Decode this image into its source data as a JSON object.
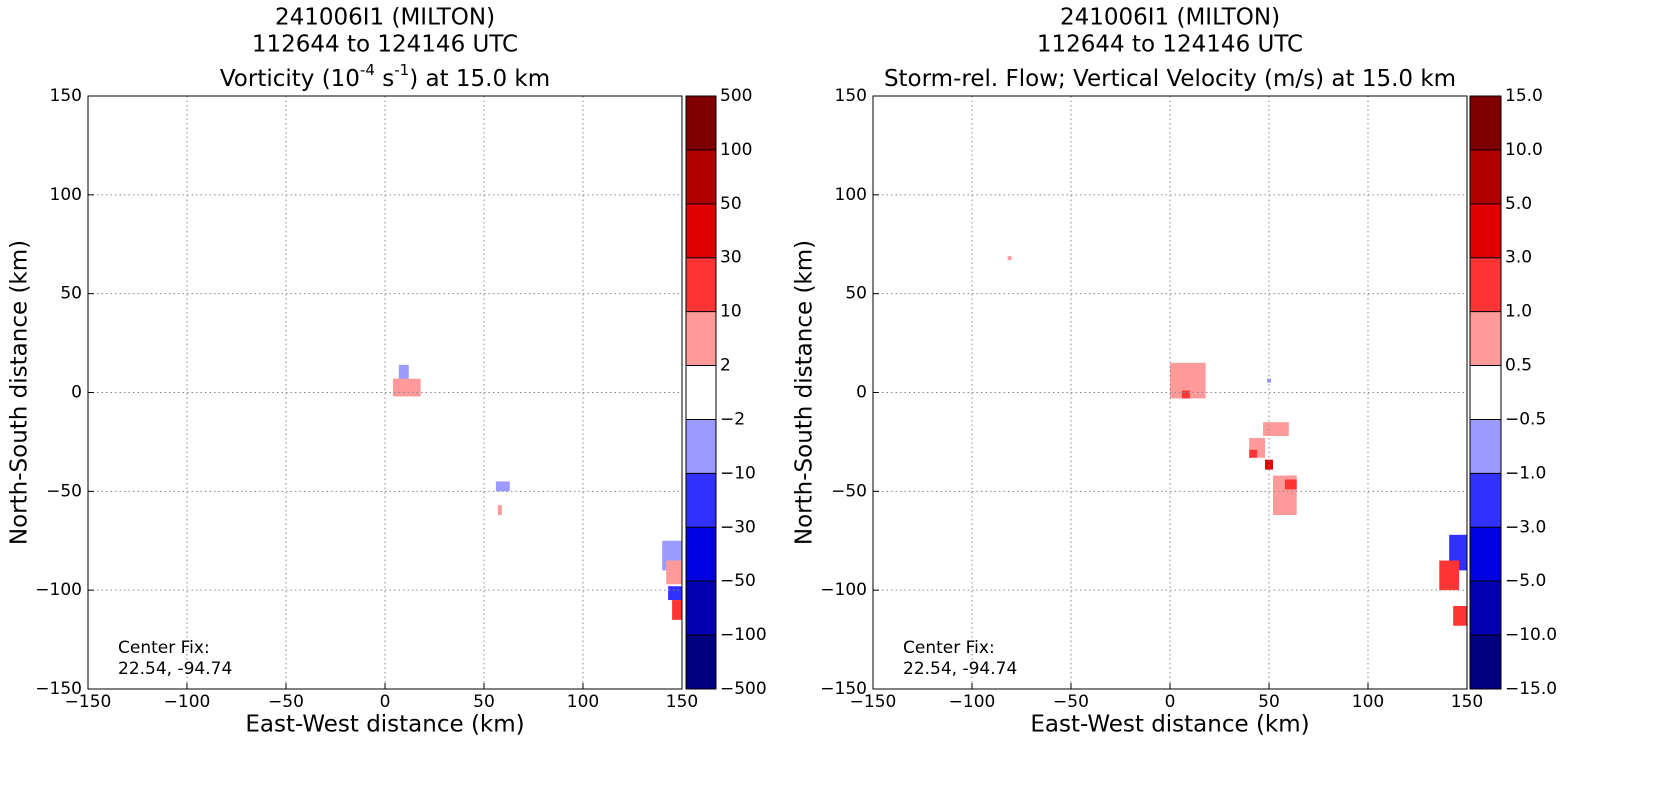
{
  "chart_data": [
    {
      "type": "contour",
      "title": [
        "241006I1 (MILTON)",
        "112644 to 124146 UTC",
        [
          "Vorticity (10",
          "-4",
          " s",
          "-1",
          ") at 15.0 km"
        ]
      ],
      "xlabel": "East-West distance (km)",
      "ylabel": "North-South distance (km)",
      "annotation": [
        "Center Fix:",
        "22.54, -94.74"
      ],
      "xlim": [
        -150,
        150
      ],
      "ylim": [
        -150,
        150
      ],
      "xticks": [
        {
          "value": -150,
          "label": "−150"
        },
        {
          "value": -100,
          "label": "−100"
        },
        {
          "value": -50,
          "label": "−50"
        },
        0,
        50,
        100,
        150
      ],
      "yticks": [
        {
          "value": -150,
          "label": "−150"
        },
        {
          "value": -100,
          "label": "−100"
        },
        {
          "value": -50,
          "label": "−50"
        },
        0,
        50,
        100,
        150
      ],
      "grid": true,
      "levels": [
        {
          "value": -500,
          "label": "−500"
        },
        {
          "value": -100,
          "label": "−100"
        },
        {
          "value": -50,
          "label": "−50"
        },
        {
          "value": -30,
          "label": "−30"
        },
        {
          "value": -10,
          "label": "−10"
        },
        {
          "value": -2,
          "label": "−2"
        },
        2,
        10,
        30,
        50,
        100,
        500
      ],
      "colors": [
        "#00007f",
        "#0000b0",
        "#0000e0",
        "#3030ff",
        "#9a9aff",
        "#ffffff",
        "#ff9a9a",
        "#ff3535",
        "#e00000",
        "#b00000",
        "#7f0000"
      ],
      "regions": [
        {
          "x0": 7,
          "x1": 12,
          "y0": 6,
          "y1": 14,
          "value": -5
        },
        {
          "x0": 4,
          "x1": 18,
          "y0": -2,
          "y1": 7,
          "value": 5
        },
        {
          "x0": 56,
          "x1": 63,
          "y0": -50,
          "y1": -45,
          "value": -5
        },
        {
          "x0": 57,
          "x1": 59,
          "y0": -62,
          "y1": -57,
          "value": 5
        },
        {
          "x0": 140,
          "x1": 150,
          "y0": -90,
          "y1": -75,
          "value": -5
        },
        {
          "x0": 142,
          "x1": 150,
          "y0": -97,
          "y1": -85,
          "value": 5
        },
        {
          "x0": 143,
          "x1": 150,
          "y0": -105,
          "y1": -98,
          "value": -20
        },
        {
          "x0": 145,
          "x1": 150,
          "y0": -115,
          "y1": -105,
          "value": 20
        }
      ]
    },
    {
      "type": "contour",
      "title": [
        "241006I1 (MILTON)",
        "112644 to 124146 UTC",
        [
          "Storm-rel. Flow; Vertical Velocity (m/s) at 15.0 km"
        ]
      ],
      "xlabel": "East-West distance (km)",
      "ylabel": "North-South distance (km)",
      "annotation": [
        "Center Fix:",
        "22.54, -94.74"
      ],
      "xlim": [
        -150,
        150
      ],
      "ylim": [
        -150,
        150
      ],
      "xticks": [
        {
          "value": -150,
          "label": "−150"
        },
        {
          "value": -100,
          "label": "−100"
        },
        {
          "value": -50,
          "label": "−50"
        },
        0,
        50,
        100,
        150
      ],
      "yticks": [
        {
          "value": -150,
          "label": "−150"
        },
        {
          "value": -100,
          "label": "−100"
        },
        {
          "value": -50,
          "label": "−50"
        },
        0,
        50,
        100,
        150
      ],
      "grid": true,
      "levels": [
        {
          "value": -15,
          "label": "−15.0"
        },
        {
          "value": -10,
          "label": "−10.0"
        },
        {
          "value": -5,
          "label": "−5.0"
        },
        {
          "value": -3,
          "label": "−3.0"
        },
        {
          "value": -1,
          "label": "−1.0"
        },
        {
          "value": -0.5,
          "label": "−0.5"
        },
        0.5,
        {
          "value": 1,
          "label": "1.0"
        },
        {
          "value": 3,
          "label": "3.0"
        },
        {
          "value": 5,
          "label": "5.0"
        },
        {
          "value": 10,
          "label": "10.0"
        },
        {
          "value": 15,
          "label": "15.0"
        }
      ],
      "colors": [
        "#00007f",
        "#0000b0",
        "#0000e0",
        "#3030ff",
        "#9a9aff",
        "#ffffff",
        "#ff9a9a",
        "#ff3535",
        "#e00000",
        "#b00000",
        "#7f0000"
      ],
      "regions": [
        {
          "x0": -82,
          "x1": -80,
          "y0": 67,
          "y1": 69,
          "value": 0.7
        },
        {
          "x0": 0,
          "x1": 18,
          "y0": -3,
          "y1": 15,
          "value": 0.7
        },
        {
          "x0": 6,
          "x1": 10,
          "y0": -3,
          "y1": 1,
          "value": 2
        },
        {
          "x0": 40,
          "x1": 48,
          "y0": -33,
          "y1": -23,
          "value": 0.7
        },
        {
          "x0": 40,
          "x1": 44,
          "y0": -33,
          "y1": -29,
          "value": 2
        },
        {
          "x0": 48,
          "x1": 52,
          "y0": -39,
          "y1": -34,
          "value": 4
        },
        {
          "x0": 52,
          "x1": 64,
          "y0": -62,
          "y1": -42,
          "value": 0.7
        },
        {
          "x0": 58,
          "x1": 64,
          "y0": -49,
          "y1": -44,
          "value": 2
        },
        {
          "x0": 47,
          "x1": 60,
          "y0": -22,
          "y1": -15,
          "value": 0.7
        },
        {
          "x0": 49,
          "x1": 51,
          "y0": 5,
          "y1": 7,
          "value": -0.7
        },
        {
          "x0": 141,
          "x1": 150,
          "y0": -90,
          "y1": -72,
          "value": -2
        },
        {
          "x0": 136,
          "x1": 146,
          "y0": -100,
          "y1": -85,
          "value": 2
        },
        {
          "x0": 143,
          "x1": 150,
          "y0": -118,
          "y1": -108,
          "value": 2
        }
      ]
    }
  ]
}
